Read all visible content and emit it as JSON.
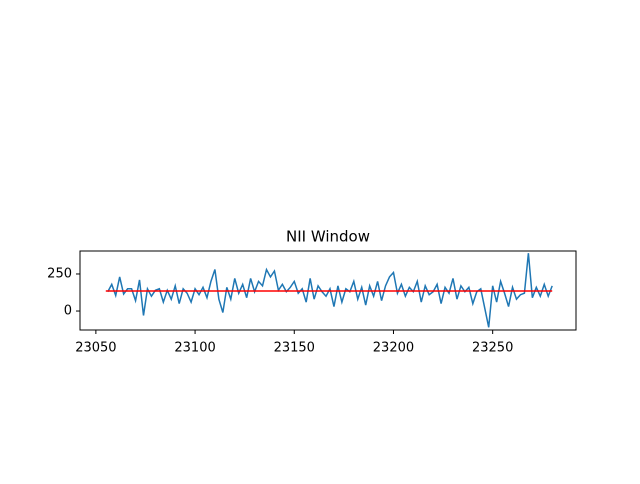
{
  "chart_data": {
    "type": "line",
    "title": "NII Window",
    "xlim": [
      23042,
      23292
    ],
    "ylim": [
      -128,
      405
    ],
    "xticks": [
      23050,
      23100,
      23150,
      23200,
      23250
    ],
    "yticks": [
      0,
      250
    ],
    "series": [
      {
        "color": "#1f77b4",
        "x": [
          23056,
          23058,
          23060,
          23062,
          23064,
          23066,
          23068,
          23070,
          23072,
          23074,
          23076,
          23078,
          23080,
          23082,
          23084,
          23086,
          23088,
          23090,
          23092,
          23094,
          23096,
          23098,
          23100,
          23102,
          23104,
          23106,
          23108,
          23110,
          23112,
          23114,
          23116,
          23118,
          23120,
          23122,
          23124,
          23126,
          23128,
          23130,
          23132,
          23134,
          23136,
          23138,
          23140,
          23142,
          23144,
          23146,
          23148,
          23150,
          23152,
          23154,
          23156,
          23158,
          23160,
          23162,
          23164,
          23166,
          23168,
          23170,
          23172,
          23174,
          23176,
          23178,
          23180,
          23182,
          23184,
          23186,
          23188,
          23190,
          23192,
          23194,
          23196,
          23198,
          23200,
          23202,
          23204,
          23206,
          23208,
          23210,
          23212,
          23214,
          23216,
          23218,
          23220,
          23222,
          23224,
          23226,
          23228,
          23230,
          23232,
          23234,
          23236,
          23238,
          23240,
          23242,
          23244,
          23246,
          23248,
          23250,
          23252,
          23254,
          23256,
          23258,
          23260,
          23262,
          23264,
          23266,
          23268,
          23270,
          23272,
          23274,
          23276,
          23278,
          23280
        ],
        "values": [
          130,
          180,
          105,
          230,
          115,
          150,
          150,
          70,
          210,
          -30,
          150,
          100,
          140,
          150,
          60,
          140,
          80,
          170,
          50,
          150,
          120,
          60,
          150,
          110,
          160,
          90,
          200,
          280,
          80,
          -10,
          160,
          80,
          220,
          120,
          180,
          90,
          220,
          130,
          200,
          170,
          280,
          230,
          270,
          140,
          180,
          130,
          160,
          200,
          120,
          150,
          60,
          220,
          80,
          170,
          130,
          100,
          150,
          30,
          170,
          60,
          150,
          130,
          200,
          80,
          160,
          40,
          170,
          100,
          200,
          70,
          170,
          230,
          260,
          120,
          180,
          100,
          160,
          130,
          200,
          60,
          170,
          110,
          130,
          180,
          50,
          160,
          120,
          220,
          80,
          170,
          130,
          160,
          50,
          130,
          150,
          20,
          -110,
          170,
          60,
          200,
          120,
          30,
          160,
          80,
          110,
          120,
          390,
          90,
          160,
          100,
          180,
          100,
          170
        ]
      },
      {
        "color": "#ff0000",
        "x": [
          23055,
          23280
        ],
        "values": [
          135,
          135
        ]
      }
    ]
  }
}
